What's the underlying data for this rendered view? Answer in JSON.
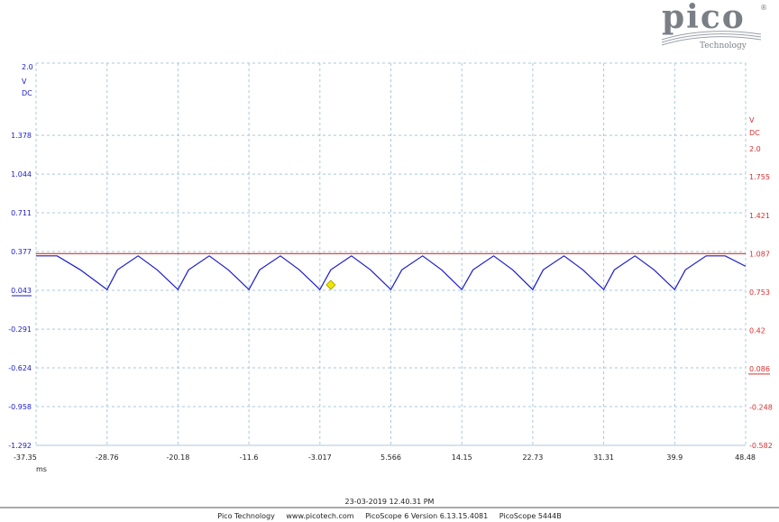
{
  "brand": {
    "name": "pico",
    "tagline": "Technology",
    "reg": "®"
  },
  "timestamp": "23-03-2019 12.40.31 PM",
  "footer": {
    "company": "Pico Technology",
    "website": "www.picotech.com",
    "software": "PicoScope 6 Version 6.13.15.4081",
    "device": "PicoScope 5444B"
  },
  "colors": {
    "channel_a": "#1a1acc",
    "channel_b": "#d93030",
    "grid": "#a9c8de",
    "marker": "#f2e600"
  },
  "chart_data": {
    "type": "line",
    "x_unit": "ms",
    "x_ticks": [
      "-37.35",
      "-28.76",
      "-20.18",
      "-11.6",
      "-3.017",
      "5.566",
      "14.15",
      "22.73",
      "31.31",
      "39.9",
      "48.48"
    ],
    "xlim": [
      -37.35,
      48.48
    ],
    "left_axis": {
      "unit": "V",
      "coupling": "DC",
      "ticks": [
        "2.0",
        "1.378",
        "1.044",
        "0.711",
        "0.377",
        "0.043",
        "-0.291",
        "-0.624",
        "-0.958",
        "-1.292"
      ],
      "ylim": [
        -1.292,
        2.0
      ]
    },
    "right_axis": {
      "unit": "V",
      "coupling": "DC",
      "ticks": [
        "2.0",
        "1.755",
        "1.421",
        "1.087",
        "0.753",
        "0.42",
        "0.086",
        "-0.248",
        "-0.582"
      ],
      "ylim": [
        -0.582,
        2.0
      ]
    },
    "series": [
      {
        "axis": "left",
        "x": [
          -37.35,
          -34.8,
          -32.0,
          -28.76,
          -27.5,
          -25.0,
          -22.7,
          -20.18,
          -18.9,
          -16.4,
          -14.1,
          -11.6,
          -10.3,
          -7.8,
          -5.5,
          -3.017,
          -1.7,
          0.8,
          3.1,
          5.566,
          6.9,
          9.4,
          11.7,
          14.15,
          15.5,
          18.0,
          20.3,
          22.73,
          24.0,
          26.5,
          28.8,
          31.31,
          32.6,
          35.1,
          37.4,
          39.9,
          41.2,
          43.7,
          46.0,
          48.48
        ],
        "y": [
          0.34,
          0.34,
          0.22,
          0.05,
          0.22,
          0.34,
          0.22,
          0.05,
          0.22,
          0.34,
          0.22,
          0.05,
          0.22,
          0.34,
          0.22,
          0.05,
          0.22,
          0.34,
          0.22,
          0.05,
          0.22,
          0.34,
          0.22,
          0.05,
          0.22,
          0.34,
          0.22,
          0.05,
          0.22,
          0.34,
          0.22,
          0.05,
          0.22,
          0.34,
          0.22,
          0.05,
          0.22,
          0.34,
          0.34,
          0.25
        ]
      },
      {
        "axis": "right",
        "x": [
          -37.35,
          48.48
        ],
        "y": [
          1.087,
          1.087
        ]
      }
    ],
    "marker": {
      "x": -1.7,
      "y": 0.09
    },
    "grid": true
  }
}
